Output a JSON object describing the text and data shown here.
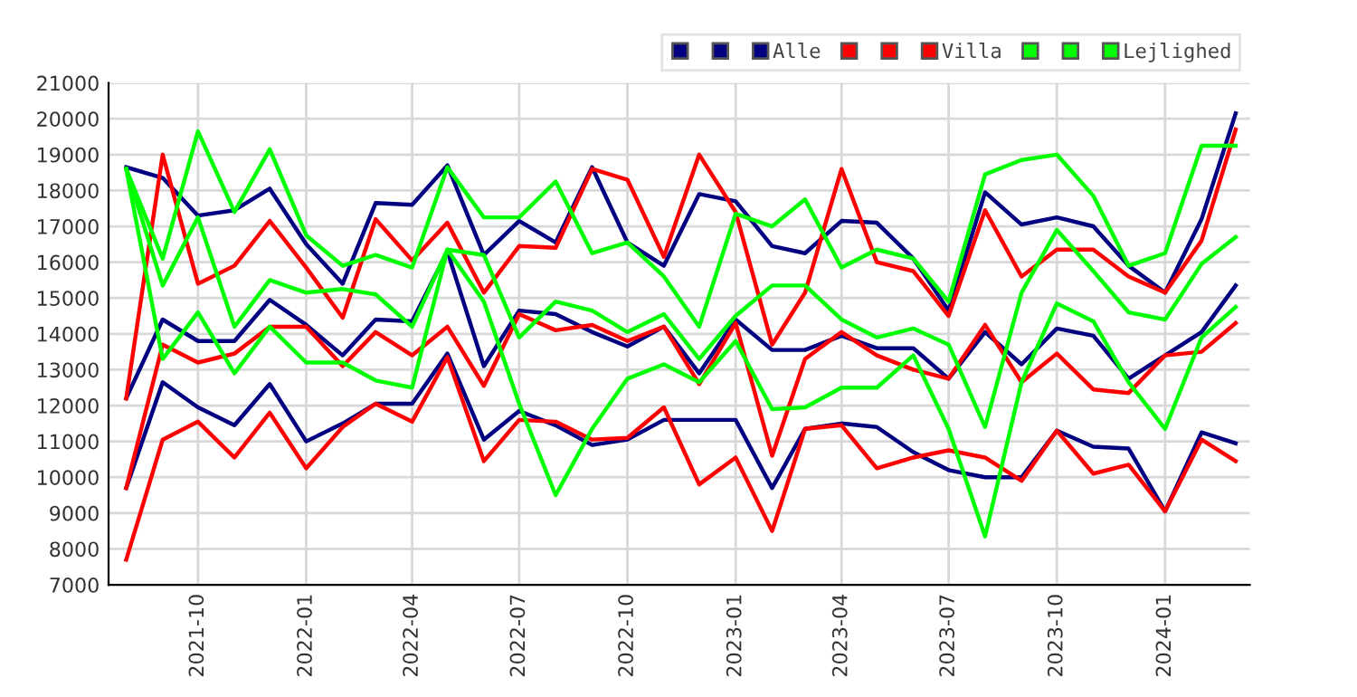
{
  "chart_data": {
    "type": "line",
    "x": [
      "2021-08",
      "2021-09",
      "2021-10",
      "2021-11",
      "2021-12",
      "2022-01",
      "2022-02",
      "2022-03",
      "2022-04",
      "2022-05",
      "2022-06",
      "2022-07",
      "2022-08",
      "2022-09",
      "2022-10",
      "2022-11",
      "2022-12",
      "2023-01",
      "2023-02",
      "2023-03",
      "2023-04",
      "2023-05",
      "2023-06",
      "2023-07",
      "2023-08",
      "2023-09",
      "2023-10",
      "2023-11",
      "2023-12",
      "2024-01",
      "2024-02",
      "2024-03"
    ],
    "series": [
      {
        "color": "#000080",
        "values": [
          18650,
          18350,
          17300,
          17450,
          18050,
          16500,
          15400,
          17650,
          17600,
          18700,
          16200,
          17150,
          16550,
          18650,
          16550,
          15900,
          17900,
          17700,
          16450,
          16250,
          17150,
          17100,
          16100,
          14650,
          17950,
          17050,
          17250,
          17000,
          15900,
          15150,
          17200,
          20150
        ]
      },
      {
        "color": "#000080",
        "values": [
          12200,
          14400,
          13800,
          13800,
          14950,
          14250,
          13400,
          14400,
          14350,
          16300,
          13100,
          14650,
          14550,
          14050,
          13650,
          14200,
          12900,
          14400,
          13550,
          13550,
          13950,
          13600,
          13600,
          12750,
          14050,
          13150,
          14150,
          13950,
          12750,
          13400,
          14050,
          15350
        ]
      },
      {
        "name": "Alle",
        "color": "#000080",
        "values": [
          9700,
          12650,
          11950,
          11450,
          12600,
          11000,
          11500,
          12050,
          12050,
          13450,
          11050,
          11850,
          11450,
          10900,
          11050,
          11600,
          11600,
          11600,
          9700,
          11350,
          11500,
          11400,
          10700,
          10200,
          10000,
          10000,
          11300,
          10850,
          10800,
          9050,
          11250,
          10950
        ]
      },
      {
        "color": "#ff0000",
        "values": [
          12200,
          19000,
          15400,
          15900,
          17150,
          15850,
          14450,
          17200,
          16050,
          17100,
          15150,
          16450,
          16400,
          18600,
          18300,
          16150,
          19000,
          17400,
          13700,
          15150,
          18600,
          16000,
          15750,
          14500,
          17450,
          15600,
          16350,
          16350,
          15600,
          15150,
          16600,
          19700
        ]
      },
      {
        "color": "#ff0000",
        "values": [
          9700,
          13700,
          13200,
          13450,
          14200,
          14200,
          13100,
          14050,
          13400,
          14200,
          12550,
          14550,
          14100,
          14250,
          13800,
          14200,
          12600,
          14300,
          10600,
          13300,
          14050,
          13400,
          13000,
          12750,
          14250,
          12650,
          13450,
          12450,
          12350,
          13400,
          13500,
          14300
        ]
      },
      {
        "name": "Villa",
        "color": "#ff0000",
        "values": [
          7700,
          11050,
          11550,
          10550,
          11800,
          10250,
          11400,
          12050,
          11550,
          13350,
          10450,
          11600,
          11550,
          11050,
          11100,
          11950,
          9800,
          10550,
          8500,
          11350,
          11450,
          10250,
          10550,
          10750,
          10550,
          9900,
          11300,
          10100,
          10350,
          9050,
          11050,
          10450
        ]
      },
      {
        "color": "#00ff00",
        "values": [
          18600,
          16100,
          19650,
          17400,
          19150,
          16750,
          15900,
          16200,
          15850,
          18650,
          17250,
          17250,
          18250,
          16250,
          16550,
          15600,
          14200,
          17350,
          17000,
          17750,
          15850,
          16350,
          16100,
          14900,
          18450,
          18850,
          19000,
          17850,
          15900,
          16250,
          19250,
          19250
        ]
      },
      {
        "color": "#00ff00",
        "values": [
          18600,
          15350,
          17250,
          14200,
          15500,
          15150,
          15250,
          15100,
          14200,
          16350,
          16200,
          13900,
          14900,
          14650,
          14050,
          14550,
          13300,
          14500,
          15350,
          15350,
          14400,
          13900,
          14150,
          13700,
          11400,
          15150,
          16900,
          15750,
          14600,
          14400,
          15950,
          16700
        ]
      },
      {
        "name": "Lejlighed",
        "color": "#00ff00",
        "values": [
          18600,
          13300,
          14600,
          12900,
          14200,
          13200,
          13200,
          12700,
          12500,
          16350,
          14900,
          12050,
          9500,
          11350,
          12750,
          13150,
          12650,
          13800,
          11900,
          11950,
          12500,
          12500,
          13400,
          11350,
          8350,
          12650,
          14850,
          14350,
          12650,
          11350,
          13900,
          14750
        ]
      }
    ],
    "xlim": [
      "2021-07-17",
      "2024-03-13"
    ],
    "xticks": [
      "2021-10",
      "2022-01",
      "2022-04",
      "2022-07",
      "2022-10",
      "2023-01",
      "2023-04",
      "2023-07",
      "2023-10",
      "2024-01"
    ],
    "ylim": [
      7000,
      21000
    ],
    "yticks": [
      7000,
      8000,
      9000,
      10000,
      11000,
      12000,
      13000,
      14000,
      15000,
      16000,
      17000,
      18000,
      19000,
      20000,
      21000
    ],
    "grid": true,
    "legend": "top right",
    "marker": "none",
    "line_style": "solid"
  }
}
